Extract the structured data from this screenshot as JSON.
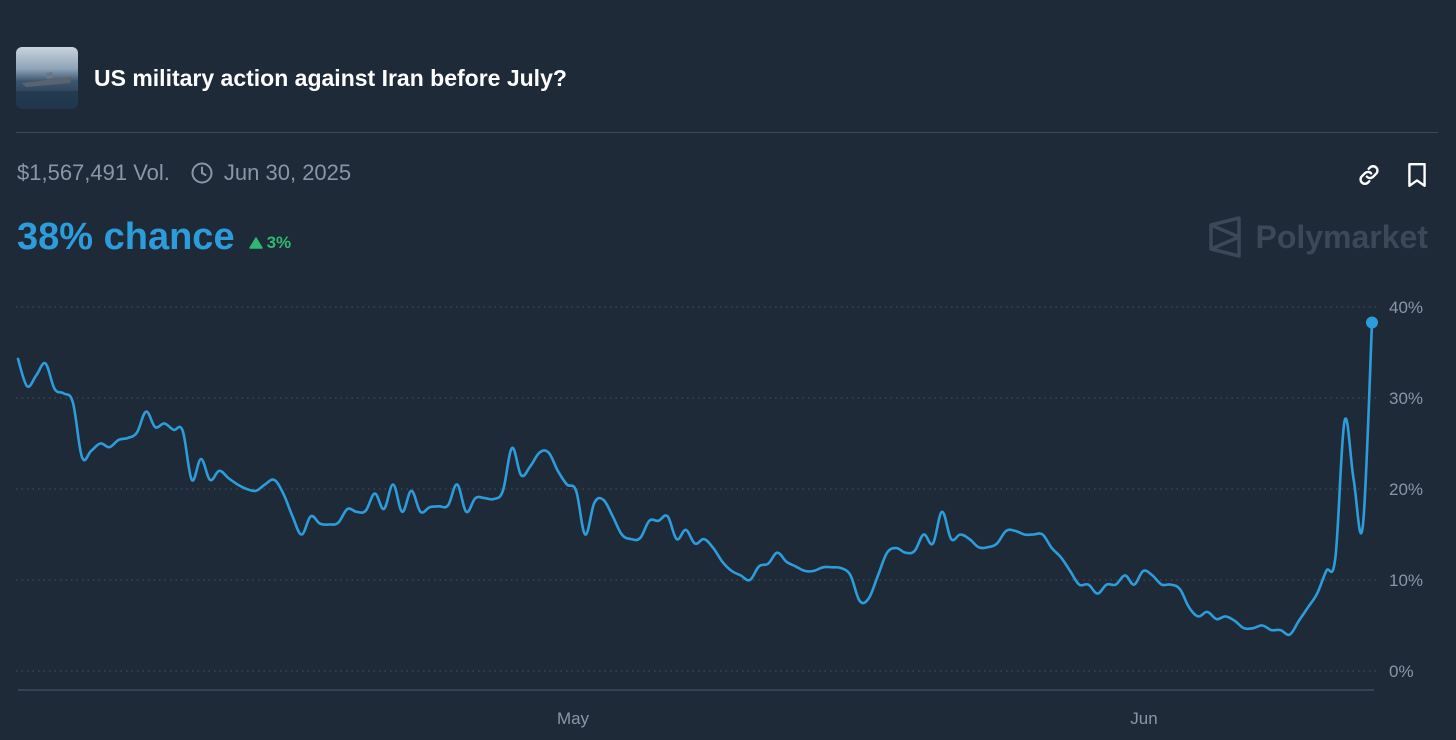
{
  "market": {
    "title": "US military action against Iran before July?",
    "volume": "$1,567,491 Vol.",
    "end_date": "Jun 30, 2025",
    "chance": "38% chance",
    "delta": "3%",
    "brand": "Polymarket"
  },
  "icons": {
    "clock": "clock-icon",
    "link": "link-icon",
    "bookmark": "bookmark-icon",
    "delta_arrow": "triangle-up-icon",
    "brand_logo": "polymarket-logo-icon"
  },
  "colors": {
    "background": "#1f2a38",
    "line": "#2d9cdb",
    "up": "#2eb872",
    "muted": "#8a96a8",
    "grid": "#3c4a5c"
  },
  "chart_data": {
    "type": "line",
    "x_ticks": [
      "May",
      "Jun"
    ],
    "y_ticks": [
      "0%",
      "10%",
      "20%",
      "30%",
      "40%"
    ],
    "ylim": [
      0,
      40
    ],
    "grid": "horizontal dotted",
    "series": [
      {
        "values": [
          34.3,
          31.3,
          32.5,
          33.8,
          31.0,
          30.5,
          29.5,
          23.5,
          24.2,
          25.0,
          24.6,
          25.4,
          25.6,
          26.2,
          28.5,
          26.8,
          27.2,
          26.5,
          26.4,
          21.0,
          23.3,
          21.0,
          22.0,
          21.2,
          20.5,
          20.0,
          19.8,
          20.5,
          21.0,
          19.5,
          17.0,
          15.0,
          17.0,
          16.2,
          16.1,
          16.3,
          17.8,
          17.5,
          17.6,
          19.5,
          17.8,
          20.5,
          17.5,
          19.8,
          17.5,
          18.0,
          18.1,
          18.2,
          20.5,
          17.5,
          19.0,
          19.0,
          18.9,
          19.8,
          24.5,
          21.5,
          22.5,
          24.0,
          24.0,
          22.0,
          20.5,
          19.8,
          15.0,
          18.5,
          18.8,
          17.0,
          15.0,
          14.5,
          14.6,
          16.5,
          16.5,
          17.0,
          14.5,
          15.5,
          14.0,
          14.5,
          13.5,
          12.0,
          11.0,
          10.5,
          10.0,
          11.5,
          11.8,
          13.0,
          12.0,
          11.5,
          11.0,
          11.0,
          11.4,
          11.4,
          11.3,
          10.5,
          7.7,
          8.0,
          10.5,
          13.0,
          13.5,
          13.0,
          13.2,
          15.0,
          14.0,
          17.5,
          14.5,
          15.0,
          14.5,
          13.6,
          13.6,
          14.0,
          15.4,
          15.4,
          15.0,
          15.0,
          15.0,
          13.5,
          12.5,
          11.0,
          9.5,
          9.5,
          8.5,
          9.5,
          9.5,
          10.5,
          9.5,
          11.0,
          10.5,
          9.5,
          9.5,
          9.0,
          7.0,
          6.0,
          6.5,
          5.7,
          6.0,
          5.5,
          4.7,
          4.7,
          5.0,
          4.5,
          4.5,
          4.0,
          5.5,
          7.0,
          8.5,
          11.0,
          12.5,
          27.5,
          21.0,
          16.0,
          38.3
        ]
      }
    ]
  }
}
